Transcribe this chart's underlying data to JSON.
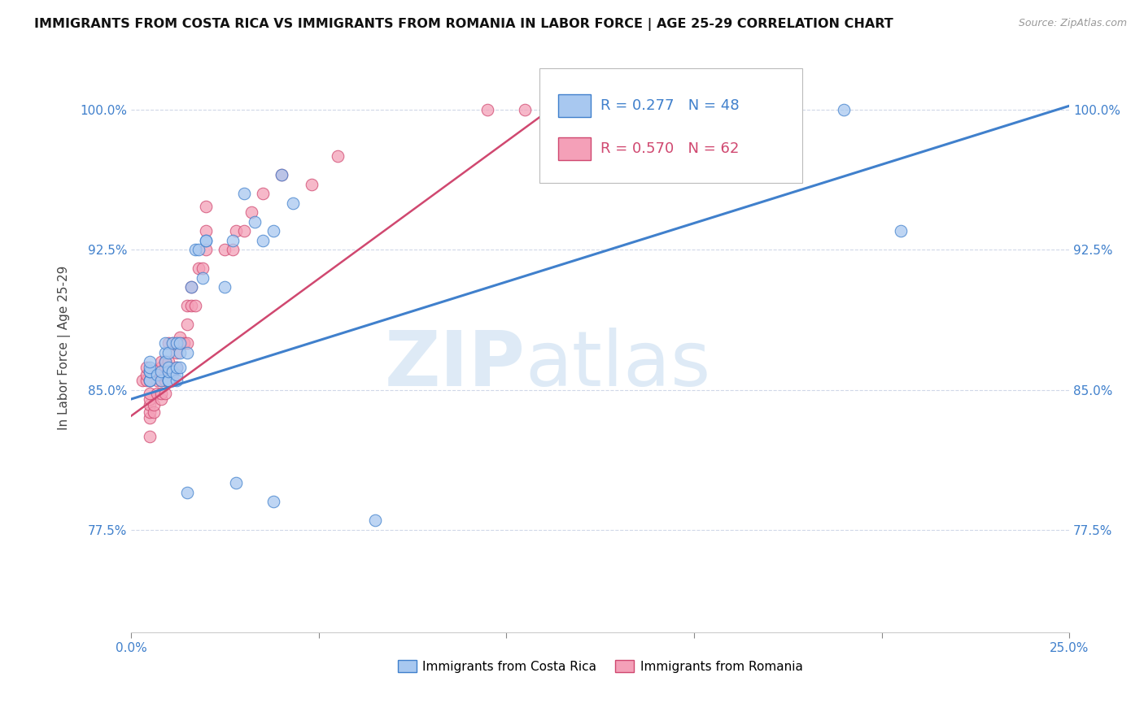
{
  "title": "IMMIGRANTS FROM COSTA RICA VS IMMIGRANTS FROM ROMANIA IN LABOR FORCE | AGE 25-29 CORRELATION CHART",
  "source": "Source: ZipAtlas.com",
  "ylabel": "In Labor Force | Age 25-29",
  "xlim": [
    0.0,
    0.25
  ],
  "ylim": [
    0.72,
    1.025
  ],
  "xticks": [
    0.0,
    0.05,
    0.1,
    0.15,
    0.2,
    0.25
  ],
  "xticklabels": [
    "0.0%",
    "",
    "",
    "",
    "",
    "25.0%"
  ],
  "yticks": [
    0.775,
    0.85,
    0.925,
    1.0
  ],
  "yticklabels": [
    "77.5%",
    "85.0%",
    "92.5%",
    "100.0%"
  ],
  "costa_rica_R": 0.277,
  "costa_rica_N": 48,
  "romania_R": 0.57,
  "romania_N": 62,
  "costa_rica_color": "#a8c8f0",
  "romania_color": "#f4a0b8",
  "line_costa_rica_color": "#4080cc",
  "line_romania_color": "#d04870",
  "tick_color": "#4080cc",
  "background_color": "#ffffff",
  "grid_color": "#d0d8e8",
  "costa_rica_x": [
    0.005,
    0.005,
    0.005,
    0.005,
    0.005,
    0.005,
    0.007,
    0.008,
    0.008,
    0.009,
    0.009,
    0.009,
    0.01,
    0.01,
    0.01,
    0.01,
    0.01,
    0.01,
    0.011,
    0.011,
    0.012,
    0.012,
    0.012,
    0.012,
    0.013,
    0.013,
    0.013,
    0.015,
    0.016,
    0.017,
    0.018,
    0.019,
    0.02,
    0.02,
    0.025,
    0.027,
    0.03,
    0.033,
    0.035,
    0.038,
    0.04,
    0.043,
    0.19,
    0.205,
    0.015,
    0.028,
    0.038,
    0.065
  ],
  "costa_rica_y": [
    0.855,
    0.855,
    0.86,
    0.86,
    0.862,
    0.865,
    0.858,
    0.855,
    0.86,
    0.87,
    0.875,
    0.865,
    0.855,
    0.855,
    0.855,
    0.86,
    0.862,
    0.87,
    0.86,
    0.875,
    0.855,
    0.858,
    0.862,
    0.875,
    0.862,
    0.87,
    0.875,
    0.87,
    0.905,
    0.925,
    0.925,
    0.91,
    0.93,
    0.93,
    0.905,
    0.93,
    0.955,
    0.94,
    0.93,
    0.935,
    0.965,
    0.95,
    1.0,
    0.935,
    0.795,
    0.8,
    0.79,
    0.78
  ],
  "romania_x": [
    0.003,
    0.004,
    0.004,
    0.004,
    0.005,
    0.005,
    0.005,
    0.005,
    0.005,
    0.005,
    0.005,
    0.006,
    0.006,
    0.007,
    0.007,
    0.008,
    0.008,
    0.008,
    0.008,
    0.008,
    0.008,
    0.009,
    0.009,
    0.009,
    0.009,
    0.009,
    0.01,
    0.01,
    0.01,
    0.01,
    0.01,
    0.011,
    0.011,
    0.011,
    0.012,
    0.012,
    0.012,
    0.013,
    0.013,
    0.014,
    0.015,
    0.015,
    0.015,
    0.016,
    0.016,
    0.017,
    0.018,
    0.019,
    0.02,
    0.02,
    0.02,
    0.025,
    0.027,
    0.028,
    0.03,
    0.032,
    0.035,
    0.04,
    0.048,
    0.055,
    0.095,
    0.105
  ],
  "romania_y": [
    0.855,
    0.855,
    0.858,
    0.862,
    0.825,
    0.835,
    0.838,
    0.842,
    0.845,
    0.848,
    0.855,
    0.838,
    0.842,
    0.848,
    0.855,
    0.845,
    0.848,
    0.855,
    0.858,
    0.862,
    0.865,
    0.848,
    0.855,
    0.858,
    0.862,
    0.865,
    0.855,
    0.858,
    0.862,
    0.865,
    0.875,
    0.855,
    0.858,
    0.875,
    0.862,
    0.87,
    0.875,
    0.875,
    0.878,
    0.875,
    0.875,
    0.885,
    0.895,
    0.895,
    0.905,
    0.895,
    0.915,
    0.915,
    0.925,
    0.935,
    0.948,
    0.925,
    0.925,
    0.935,
    0.935,
    0.945,
    0.955,
    0.965,
    0.96,
    0.975,
    1.0,
    1.0
  ],
  "reg_line_cr_x0": 0.0,
  "reg_line_cr_y0": 0.845,
  "reg_line_cr_x1": 0.25,
  "reg_line_cr_y1": 1.002,
  "reg_line_ro_x0": 0.0,
  "reg_line_ro_y0": 0.836,
  "reg_line_ro_x1": 0.115,
  "reg_line_ro_y1": 1.005
}
